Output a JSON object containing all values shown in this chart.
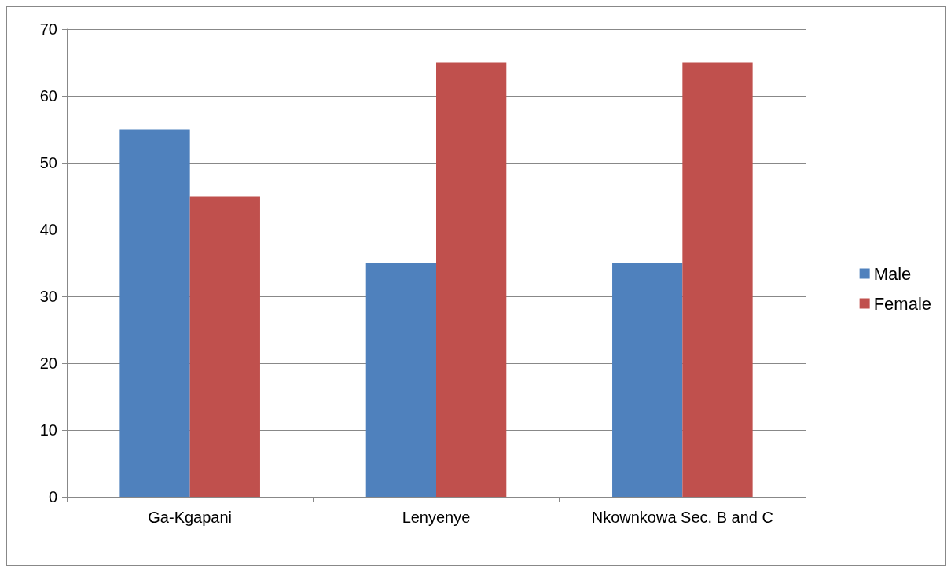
{
  "chart_data": {
    "type": "bar",
    "categories": [
      "Ga-Kgapani",
      "Lenyenye",
      "Nkownkowa Sec. B and C"
    ],
    "series": [
      {
        "name": "Male",
        "color": "#4f81bd",
        "values": [
          55,
          35,
          35
        ]
      },
      {
        "name": "Female",
        "color": "#c0504d",
        "values": [
          45,
          65,
          65
        ]
      }
    ],
    "ylim": [
      0,
      70
    ],
    "yticks": [
      0,
      10,
      20,
      30,
      40,
      50,
      60,
      70
    ],
    "grid": "y",
    "legend": "right"
  }
}
